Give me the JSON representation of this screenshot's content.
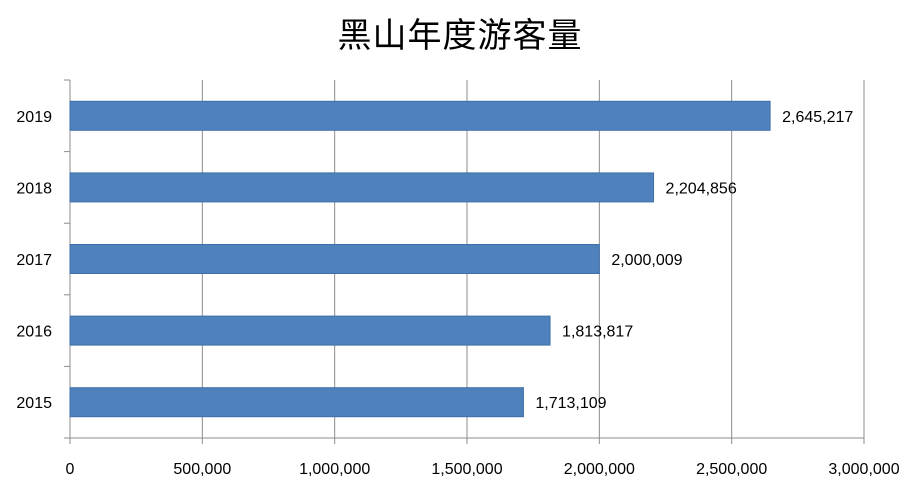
{
  "chart_data": {
    "type": "bar",
    "orientation": "horizontal",
    "title": "黑山年度游客量",
    "categories": [
      "2015",
      "2016",
      "2017",
      "2018",
      "2019"
    ],
    "values": [
      1713109,
      1813817,
      2000009,
      2204856,
      2645217
    ],
    "value_labels": [
      "1,713,109",
      "1,813,817",
      "2,000,009",
      "2,204,856",
      "2,645,217"
    ],
    "xlim": [
      0,
      3000000
    ],
    "x_ticks": [
      0,
      500000,
      1000000,
      1500000,
      2000000,
      2500000,
      3000000
    ],
    "x_tick_labels": [
      "0",
      "500,000",
      "1,000,000",
      "1,500,000",
      "2,000,000",
      "2,500,000",
      "3,000,000"
    ],
    "grid": "vertical",
    "legend": "none",
    "bar_color": "#4f81bd"
  }
}
